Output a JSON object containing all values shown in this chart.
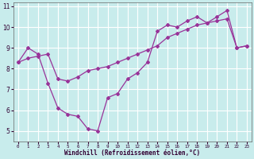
{
  "xlabel": "Windchill (Refroidissement éolien,°C)",
  "background_color": "#c8ecec",
  "grid_color": "#ffffff",
  "line_color": "#993399",
  "line1_x": [
    0,
    1,
    2,
    3,
    4,
    5,
    6,
    7,
    8,
    9,
    10,
    11,
    12,
    13,
    14,
    15,
    16,
    17,
    18,
    19,
    20,
    21,
    22,
    23
  ],
  "line1_y": [
    8.3,
    9.0,
    8.7,
    7.3,
    6.1,
    5.8,
    5.7,
    5.1,
    5.0,
    6.6,
    6.8,
    7.5,
    7.8,
    8.3,
    9.8,
    10.1,
    10.0,
    10.3,
    10.5,
    10.2,
    10.5,
    10.8,
    9.0,
    9.1
  ],
  "line2_x": [
    0,
    1,
    2,
    3,
    4,
    5,
    6,
    7,
    8,
    9,
    10,
    11,
    12,
    13,
    14,
    15,
    16,
    17,
    18,
    19,
    20,
    21,
    22,
    23
  ],
  "line2_y": [
    8.3,
    8.5,
    8.6,
    8.7,
    7.5,
    7.4,
    7.6,
    7.9,
    8.0,
    8.1,
    8.3,
    8.5,
    8.7,
    8.9,
    9.1,
    9.5,
    9.7,
    9.9,
    10.1,
    10.2,
    10.3,
    10.4,
    9.0,
    9.1
  ],
  "ylim": [
    4.5,
    11.2
  ],
  "xlim": [
    -0.5,
    23.5
  ],
  "yticks": [
    5,
    6,
    7,
    8,
    9,
    10,
    11
  ],
  "xticks": [
    0,
    1,
    2,
    3,
    4,
    5,
    6,
    7,
    8,
    9,
    10,
    11,
    12,
    13,
    14,
    15,
    16,
    17,
    18,
    19,
    20,
    21,
    22,
    23
  ]
}
